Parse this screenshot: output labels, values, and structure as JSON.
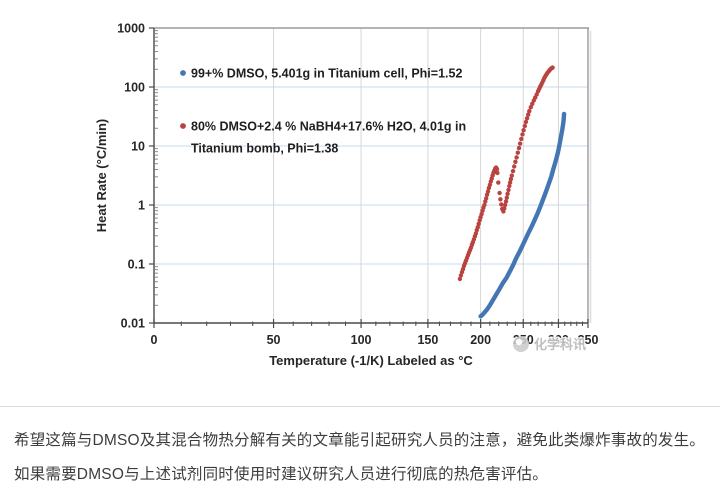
{
  "article": {
    "paragraph": "希望这篇与DMSO及其混合物热分解有关的文章能引起研究人员的注意，避免此类爆炸事故的发生。如果需要DMSO与上述试剂同时使用时建议研究人员进行彻底的热危害评估。"
  },
  "watermark": {
    "text": "化学科讯"
  },
  "chart_data": {
    "type": "scatter",
    "title": "",
    "x_axis": {
      "label": "Temperature (-1/K) Labeled as °C",
      "scale": "linear in -1/K, tick labels shown in °C",
      "ticks_c": [
        0,
        50,
        100,
        150,
        200,
        250,
        300,
        350
      ],
      "minor_tick_step_c": 10,
      "range_c": [
        0,
        350
      ]
    },
    "y_axis": {
      "label": "Heat Rate (°C/min)",
      "scale": "log10",
      "ticks": [
        1000,
        100,
        10,
        1,
        0.1,
        0.01
      ],
      "range": [
        0.01,
        1000
      ]
    },
    "grid": {
      "horizontal": true,
      "vertical": true
    },
    "legend_position": "inside top-left",
    "colors": {
      "h_grid": "#c9d8ee",
      "v_grid": "#d6d6d6",
      "frame": "#9b9b9b",
      "frame_shadow": "#dedede",
      "axis": "#4a4a4a"
    },
    "series": [
      {
        "name": "99+% DMSO, 5.401g in Titanium cell, Phi=1.52",
        "legend_lines": [
          "99+% DMSO, 5.401g in Titanium cell, Phi=1.52"
        ],
        "color": "#4476b4",
        "marker": "line",
        "units": [
          "°C",
          "°C/min"
        ],
        "segments": [
          [
            [
              200,
              0.013
            ],
            [
              202,
              0.0138
            ],
            [
              204,
              0.015
            ],
            [
              207,
              0.017
            ],
            [
              210,
              0.02
            ],
            [
              213,
              0.024
            ],
            [
              217,
              0.03
            ],
            [
              221,
              0.038
            ],
            [
              225,
              0.048
            ],
            [
              229,
              0.058
            ],
            [
              233,
              0.074
            ],
            [
              237,
              0.095
            ],
            [
              241,
              0.126
            ],
            [
              245,
              0.16
            ],
            [
              249,
              0.205
            ],
            [
              253,
              0.265
            ],
            [
              257,
              0.34
            ],
            [
              261,
              0.43
            ],
            [
              265,
              0.55
            ],
            [
              269,
              0.71
            ],
            [
              273,
              0.93
            ],
            [
              277,
              1.25
            ],
            [
              281,
              1.65
            ],
            [
              285,
              2.25
            ],
            [
              289,
              3.0
            ],
            [
              292,
              4.0
            ],
            [
              295,
              5.2
            ],
            [
              298,
              6.9
            ],
            [
              300,
              8.6
            ],
            [
              302,
              11
            ],
            [
              304,
              14.5
            ],
            [
              306,
              19
            ],
            [
              308,
              26
            ],
            [
              309,
              35
            ]
          ]
        ]
      },
      {
        "name": "80% DMSO+2.4 % NaBH4+17.6% H2O, 4.01g in Titanium bomb, Phi=1.38",
        "legend_lines": [
          "80% DMSO+2.4 % NaBH4+17.6% H2O, 4.01g in",
          "Titanium bomb, Phi=1.38"
        ],
        "color": "#b8433f",
        "marker": "dots",
        "units": [
          "°C",
          "°C/min"
        ],
        "segments": [
          [
            [
              179,
              0.056
            ],
            [
              180,
              0.064
            ],
            [
              181,
              0.073
            ],
            [
              182,
              0.082
            ],
            [
              183,
              0.093
            ],
            [
              184,
              0.103
            ],
            [
              185,
              0.114
            ],
            [
              186,
              0.127
            ],
            [
              187,
              0.141
            ],
            [
              188,
              0.156
            ],
            [
              189,
              0.172
            ],
            [
              190,
              0.19
            ],
            [
              191,
              0.212
            ],
            [
              192,
              0.235
            ],
            [
              193,
              0.262
            ],
            [
              194,
              0.295
            ],
            [
              195,
              0.33
            ],
            [
              196,
              0.375
            ],
            [
              197,
              0.42
            ],
            [
              198,
              0.48
            ],
            [
              199,
              0.55
            ],
            [
              200,
              0.62
            ],
            [
              201,
              0.7
            ],
            [
              202,
              0.8
            ],
            [
              203,
              0.9
            ],
            [
              204,
              1.0
            ],
            [
              205,
              1.15
            ],
            [
              206,
              1.3
            ],
            [
              207,
              1.5
            ],
            [
              208,
              1.7
            ],
            [
              209,
              1.95
            ],
            [
              210,
              2.2
            ],
            [
              211,
              2.5
            ],
            [
              212,
              2.8
            ],
            [
              213,
              3.15
            ],
            [
              214,
              3.5
            ],
            [
              215,
              3.85
            ],
            [
              216,
              4.15
            ],
            [
              217,
              4.3
            ],
            [
              218,
              4.05
            ],
            [
              218.5,
              3.5
            ],
            [
              219.5,
              2.4
            ],
            [
              221,
              1.6
            ]
          ],
          [
            [
              222,
              1.25
            ],
            [
              223,
              1.02
            ],
            [
              224,
              0.86
            ],
            [
              225.5,
              0.78
            ],
            [
              226.5,
              0.88
            ],
            [
              227.5,
              1.0
            ],
            [
              228.5,
              1.15
            ],
            [
              229.5,
              1.33
            ],
            [
              230.5,
              1.55
            ],
            [
              231.5,
              1.8
            ],
            [
              232.5,
              2.1
            ],
            [
              233.5,
              2.4
            ],
            [
              234.5,
              2.75
            ],
            [
              235.5,
              3.15
            ],
            [
              237,
              3.75
            ],
            [
              238.5,
              4.5
            ],
            [
              240,
              5.4
            ],
            [
              241.5,
              6.4
            ],
            [
              243,
              7.7
            ],
            [
              244.5,
              9.2
            ],
            [
              246,
              11
            ],
            [
              247.5,
              13.2
            ],
            [
              249,
              15.7
            ],
            [
              250.5,
              18.5
            ],
            [
              252,
              21.8
            ],
            [
              253.5,
              25.5
            ],
            [
              255,
              29.5
            ],
            [
              256.5,
              34
            ],
            [
              258,
              39
            ],
            [
              260,
              45.5
            ],
            [
              262,
              52
            ],
            [
              264,
              59
            ],
            [
              266,
              66
            ],
            [
              268,
              75
            ],
            [
              270,
              85
            ],
            [
              271.5,
              93
            ],
            [
              273,
              101
            ],
            [
              274.5,
              110
            ],
            [
              276,
              120
            ],
            [
              277.5,
              131
            ],
            [
              279,
              143
            ],
            [
              280.5,
              154
            ],
            [
              282,
              164
            ],
            [
              283.5,
              174
            ],
            [
              285,
              184
            ],
            [
              286.5,
              193
            ],
            [
              288,
              201
            ],
            [
              289.5,
              208
            ],
            [
              291,
              213
            ]
          ]
        ]
      }
    ]
  }
}
